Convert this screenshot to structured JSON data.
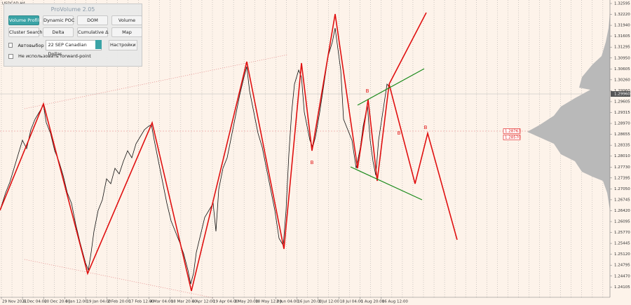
{
  "header": {
    "symbol": "USDCAD,H4"
  },
  "panel": {
    "title": "ProVolume 2.05",
    "buttons": [
      "Volume Profile",
      "Dynamic POC",
      "DOM",
      "Volume",
      "Cluster Search",
      "Delta",
      "Cumulative Δ",
      "Map"
    ],
    "auto_select": "Автовыбор",
    "contract": "22 SEP Canadian Dollar",
    "settings": "Настройки",
    "forward_point": "Не использовать forward-point"
  },
  "price_axis": [
    "1.32595",
    "1.32220",
    "1.31940",
    "1.31605",
    "1.31295",
    "1.30950",
    "1.30605",
    "1.30260",
    "1.29960",
    "1.29605",
    "1.29315",
    "1.28970",
    "1.28655",
    "1.28335",
    "1.28010",
    "1.27730",
    "1.27395",
    "1.27050",
    "1.26745",
    "1.26420",
    "1.26095",
    "1.25770",
    "1.25445",
    "1.25120",
    "1.24795",
    "1.24470",
    "1.24105"
  ],
  "current_price": "1.29960",
  "price_markers": [
    "1.28763",
    "1.28570"
  ],
  "time_axis": [
    "29 Nov 2021",
    "6 Dec 04:00",
    "20 Dec 20:00",
    "4 Jan 12:00",
    "19 Jan 04:00",
    "2 Feb 20:00",
    "17 Feb 12:00",
    "4 Mar 04:00",
    "18 Mar 20:00",
    "4 Apr 12:00",
    "19 Apr 04:00",
    "3 May 20:00",
    "18 May 12:00",
    "2 Jun 04:00",
    "16 Jun 20:00",
    "1 Jul 12:00",
    "18 Jul 04:00",
    "1 Aug 20:00",
    "16 Aug 12:00"
  ],
  "annotations": [
    "B",
    "B",
    "B",
    "B"
  ]
}
